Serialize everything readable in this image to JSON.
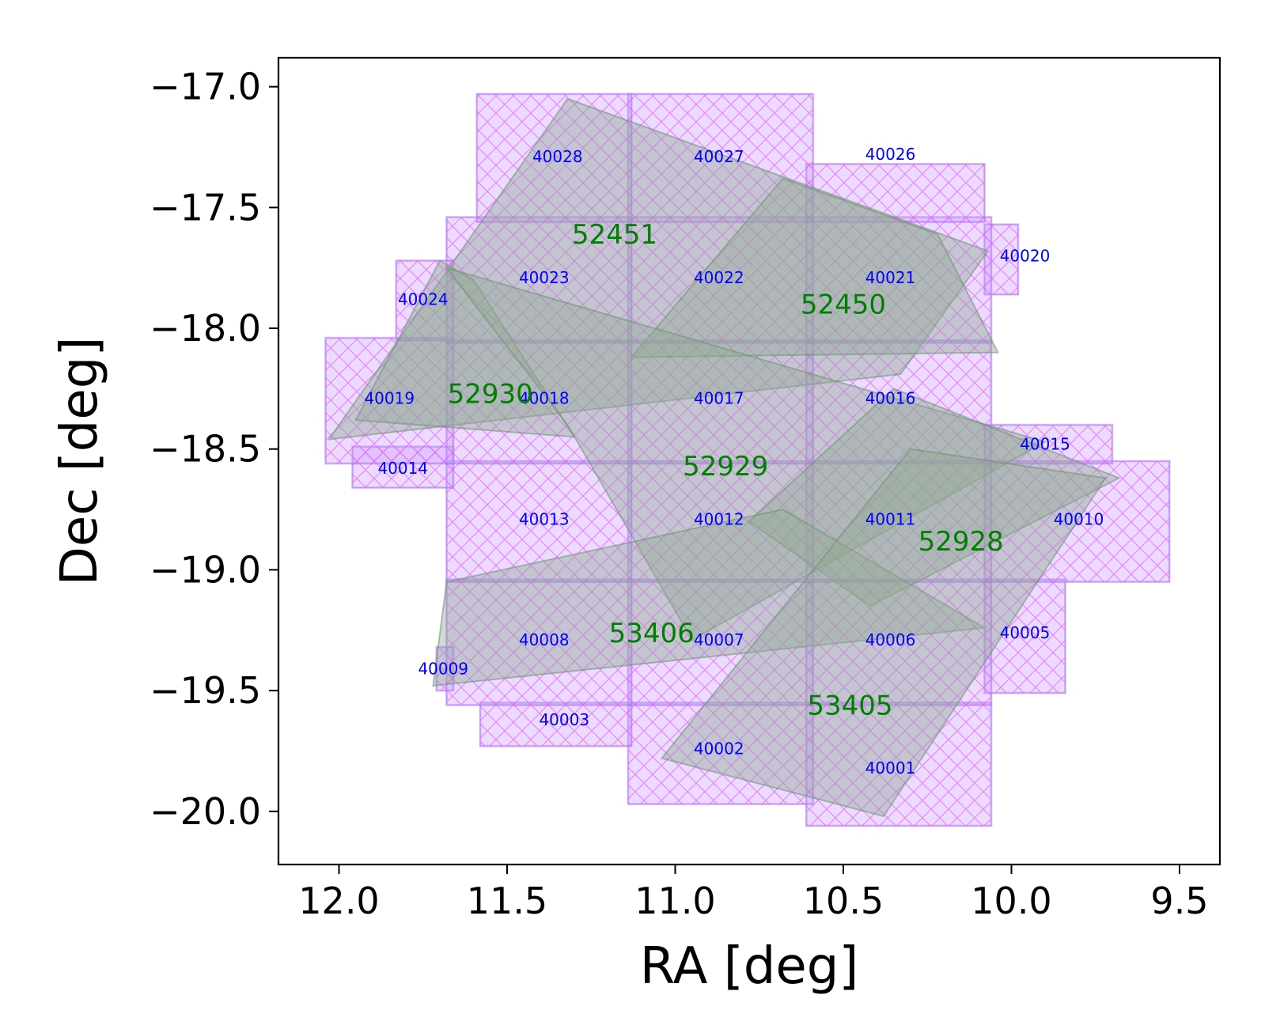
{
  "chart_data": {
    "type": "scatter",
    "title": "",
    "xlabel": "RA [deg]",
    "ylabel": "Dec [deg]",
    "xlim": [
      12.18,
      9.38
    ],
    "ylim": [
      -20.22,
      -16.88
    ],
    "x_ticks": [
      12.0,
      11.5,
      11.0,
      10.5,
      10.0,
      9.5
    ],
    "x_tick_labels": [
      "12.0",
      "11.5",
      "11.0",
      "10.5",
      "10.0",
      "9.5"
    ],
    "y_ticks": [
      -17.0,
      -17.5,
      -18.0,
      -18.5,
      -19.0,
      -19.5,
      -20.0
    ],
    "y_tick_labels": [
      "−17.0",
      "−17.5",
      "−18.0",
      "−18.5",
      "−19.0",
      "−19.5",
      "−20.0"
    ],
    "colors": {
      "tile_fill": "#cc99ff",
      "tile_hatch": "#e066ff",
      "tile_edge": "#7799dd",
      "field_fill": "#8fa892",
      "field_edge": "#6f8f74",
      "tile_text": "#0000ff",
      "field_text": "#008000"
    },
    "tiles": [
      {
        "id": "40001",
        "ra": [
          10.06,
          10.61
        ],
        "dec": [
          -19.55,
          -20.06
        ],
        "label_ra": 10.36,
        "label_dec": -19.82
      },
      {
        "id": "40002",
        "ra": [
          10.59,
          11.14
        ],
        "dec": [
          -19.55,
          -19.97
        ],
        "label_ra": 10.87,
        "label_dec": -19.74
      },
      {
        "id": "40003",
        "ra": [
          11.13,
          11.58
        ],
        "dec": [
          -19.55,
          -19.73
        ],
        "label_ra": 11.33,
        "label_dec": -19.62
      },
      {
        "id": "40005",
        "ra": [
          9.84,
          10.08
        ],
        "dec": [
          -19.04,
          -19.51
        ],
        "label_ra": 9.96,
        "label_dec": -19.26
      },
      {
        "id": "40006",
        "ra": [
          10.06,
          10.61
        ],
        "dec": [
          -19.04,
          -19.56
        ],
        "label_ra": 10.36,
        "label_dec": -19.29
      },
      {
        "id": "40007",
        "ra": [
          10.59,
          11.14
        ],
        "dec": [
          -19.04,
          -19.56
        ],
        "label_ra": 10.87,
        "label_dec": -19.29
      },
      {
        "id": "40008",
        "ra": [
          11.13,
          11.68
        ],
        "dec": [
          -19.04,
          -19.56
        ],
        "label_ra": 11.39,
        "label_dec": -19.29
      },
      {
        "id": "40009",
        "ra": [
          11.66,
          11.71
        ],
        "dec": [
          -19.32,
          -19.5
        ],
        "label_ra": 11.69,
        "label_dec": -19.41
      },
      {
        "id": "40010",
        "ra": [
          9.53,
          10.08
        ],
        "dec": [
          -18.55,
          -19.05
        ],
        "label_ra": 9.8,
        "label_dec": -18.79
      },
      {
        "id": "40011",
        "ra": [
          10.06,
          10.61
        ],
        "dec": [
          -18.55,
          -19.05
        ],
        "label_ra": 10.36,
        "label_dec": -18.79
      },
      {
        "id": "40012",
        "ra": [
          10.59,
          11.14
        ],
        "dec": [
          -18.55,
          -19.05
        ],
        "label_ra": 10.87,
        "label_dec": -18.79
      },
      {
        "id": "40013",
        "ra": [
          11.13,
          11.68
        ],
        "dec": [
          -18.55,
          -19.05
        ],
        "label_ra": 11.39,
        "label_dec": -18.79
      },
      {
        "id": "40014",
        "ra": [
          11.66,
          11.96
        ],
        "dec": [
          -18.49,
          -18.66
        ],
        "label_ra": 11.81,
        "label_dec": -18.58
      },
      {
        "id": "40015",
        "ra": [
          9.7,
          10.08
        ],
        "dec": [
          -18.4,
          -18.56
        ],
        "label_ra": 9.9,
        "label_dec": -18.48
      },
      {
        "id": "40016",
        "ra": [
          10.06,
          10.61
        ],
        "dec": [
          -18.05,
          -18.56
        ],
        "label_ra": 10.36,
        "label_dec": -18.29
      },
      {
        "id": "40017",
        "ra": [
          10.59,
          11.14
        ],
        "dec": [
          -18.05,
          -18.56
        ],
        "label_ra": 10.87,
        "label_dec": -18.29
      },
      {
        "id": "40018",
        "ra": [
          11.13,
          11.68
        ],
        "dec": [
          -18.05,
          -18.56
        ],
        "label_ra": 11.39,
        "label_dec": -18.29
      },
      {
        "id": "40019",
        "ra": [
          11.66,
          12.04
        ],
        "dec": [
          -18.04,
          -18.56
        ],
        "label_ra": 11.85,
        "label_dec": -18.29
      },
      {
        "id": "40020",
        "ra": [
          9.98,
          10.08
        ],
        "dec": [
          -17.57,
          -17.86
        ],
        "label_ra": 9.96,
        "label_dec": -17.7
      },
      {
        "id": "40021",
        "ra": [
          10.06,
          10.61
        ],
        "dec": [
          -17.54,
          -18.06
        ],
        "label_ra": 10.36,
        "label_dec": -17.79
      },
      {
        "id": "40022",
        "ra": [
          10.59,
          11.14
        ],
        "dec": [
          -17.54,
          -18.06
        ],
        "label_ra": 10.87,
        "label_dec": -17.79
      },
      {
        "id": "40023",
        "ra": [
          11.13,
          11.68
        ],
        "dec": [
          -17.54,
          -18.06
        ],
        "label_ra": 11.39,
        "label_dec": -17.79
      },
      {
        "id": "40024",
        "ra": [
          11.66,
          11.83
        ],
        "dec": [
          -17.72,
          -18.05
        ],
        "label_ra": 11.75,
        "label_dec": -17.88
      },
      {
        "id": "40026",
        "ra": [
          10.08,
          10.61
        ],
        "dec": [
          -17.32,
          -17.56
        ],
        "label_ra": 10.36,
        "label_dec": -17.28
      },
      {
        "id": "40027",
        "ra": [
          10.59,
          11.14
        ],
        "dec": [
          -17.03,
          -17.56
        ],
        "label_ra": 10.87,
        "label_dec": -17.29
      },
      {
        "id": "40028",
        "ra": [
          11.13,
          11.59
        ],
        "dec": [
          -17.03,
          -17.56
        ],
        "label_ra": 11.35,
        "label_dec": -17.29
      }
    ],
    "fields": [
      {
        "id": "52451",
        "corners": [
          [
            11.32,
            -17.05
          ],
          [
            10.07,
            -17.68
          ],
          [
            10.33,
            -18.19
          ],
          [
            12.03,
            -18.46
          ]
        ],
        "label_ra": 11.18,
        "label_dec": -17.61
      },
      {
        "id": "52450",
        "corners": [
          [
            10.68,
            -17.38
          ],
          [
            11.13,
            -18.12
          ],
          [
            10.04,
            -18.1
          ],
          [
            10.22,
            -17.61
          ]
        ],
        "label_ra": 10.5,
        "label_dec": -17.9
      },
      {
        "id": "52930",
        "corners": [
          [
            11.7,
            -17.72
          ],
          [
            11.95,
            -18.38
          ],
          [
            11.3,
            -18.45
          ],
          [
            11.6,
            -17.8
          ]
        ],
        "label_ra": 11.55,
        "label_dec": -18.27
      },
      {
        "id": "52929",
        "corners": [
          [
            11.68,
            -17.75
          ],
          [
            9.9,
            -18.47
          ],
          [
            10.95,
            -19.29
          ],
          [
            11.32,
            -18.4
          ]
        ],
        "label_ra": 10.85,
        "label_dec": -18.57
      },
      {
        "id": "52928",
        "corners": [
          [
            10.35,
            -18.25
          ],
          [
            9.68,
            -18.62
          ],
          [
            10.42,
            -19.15
          ],
          [
            10.78,
            -18.8
          ]
        ],
        "label_ra": 10.15,
        "label_dec": -18.88
      },
      {
        "id": "53406",
        "corners": [
          [
            11.68,
            -19.05
          ],
          [
            11.72,
            -19.48
          ],
          [
            10.08,
            -19.24
          ],
          [
            10.68,
            -18.75
          ]
        ],
        "label_ra": 11.07,
        "label_dec": -19.26
      },
      {
        "id": "53405",
        "corners": [
          [
            10.3,
            -18.5
          ],
          [
            9.72,
            -18.62
          ],
          [
            10.38,
            -20.02
          ],
          [
            11.04,
            -19.78
          ]
        ],
        "label_ra": 10.48,
        "label_dec": -19.56
      }
    ]
  }
}
